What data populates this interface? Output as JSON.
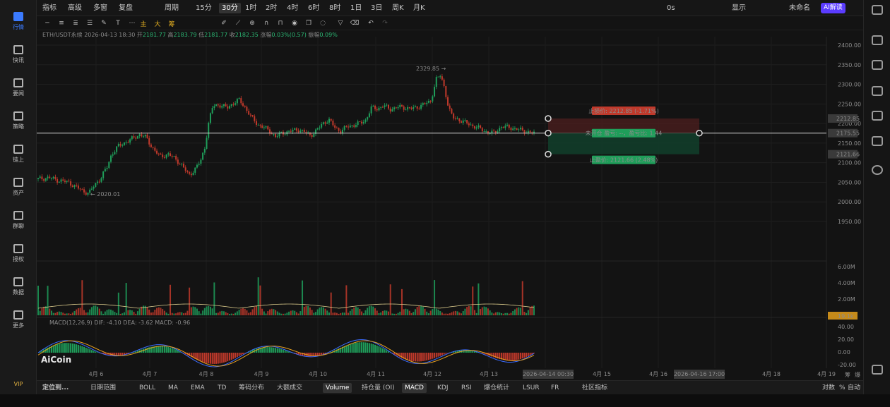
{
  "nav": [
    {
      "label": "行情",
      "active": true
    },
    {
      "label": "快讯",
      "active": false
    },
    {
      "label": "要闻",
      "active": false
    },
    {
      "label": "策略",
      "active": false
    },
    {
      "label": "链上",
      "active": false
    },
    {
      "label": "资产",
      "active": false
    },
    {
      "label": "群聊",
      "active": false
    },
    {
      "label": "授权",
      "active": false
    },
    {
      "label": "数据",
      "active": false
    },
    {
      "label": "更多",
      "active": false
    }
  ],
  "vip": "VIP",
  "toolbar": {
    "indicators": "指标",
    "advanced": "高级",
    "multi": "多窗",
    "replay": "复盘",
    "period": "周期",
    "intervals": [
      "15分",
      "30分",
      "1时",
      "2时",
      "4时",
      "6时",
      "8时",
      "1日",
      "3日",
      "周K",
      "月K"
    ],
    "selected_interval": "30分",
    "countdown": "0s",
    "display": "显示",
    "unnamed": "未命名",
    "ai": "AI解读"
  },
  "draw_tools": [
    "主",
    "大",
    "筹"
  ],
  "ohlc": {
    "symbol": "ETH/USDT永续",
    "time": "2026-04-13 18:30",
    "open_label": "开",
    "open": "2181.77",
    "high_label": "高",
    "high": "2183.79",
    "low_label": "低",
    "low": "2181.77",
    "close_label": "收",
    "close": "2182.35",
    "change_label": "涨幅",
    "change": "0.03%(0.57)",
    "amp_label": "振幅",
    "amp": "0.09%"
  },
  "chart_data": {
    "type": "line",
    "main": {
      "y_ticks": [
        2400,
        2350,
        2300,
        2250,
        2200,
        2150,
        2100,
        2050,
        2000,
        1950
      ],
      "close_path": [
        [
          0,
          2058
        ],
        [
          5,
          2062
        ],
        [
          10,
          2055
        ],
        [
          15,
          2050
        ],
        [
          18,
          2040
        ],
        [
          22,
          2028
        ],
        [
          25,
          2022
        ],
        [
          28,
          2045
        ],
        [
          31,
          2062
        ],
        [
          34,
          2090
        ],
        [
          36,
          2120
        ],
        [
          39,
          2140
        ],
        [
          42,
          2150
        ],
        [
          46,
          2160
        ],
        [
          50,
          2172
        ],
        [
          53,
          2165
        ],
        [
          56,
          2140
        ],
        [
          60,
          2115
        ],
        [
          64,
          2122
        ],
        [
          68,
          2108
        ],
        [
          71,
          2092
        ],
        [
          74,
          2068
        ],
        [
          77,
          2082
        ],
        [
          80,
          2105
        ],
        [
          82,
          2140
        ],
        [
          84,
          2205
        ],
        [
          86,
          2245
        ],
        [
          89,
          2248
        ],
        [
          93,
          2240
        ],
        [
          96,
          2252
        ],
        [
          99,
          2260
        ],
        [
          102,
          2240
        ],
        [
          105,
          2215
        ],
        [
          108,
          2198
        ],
        [
          111,
          2190
        ],
        [
          114,
          2180
        ],
        [
          117,
          2166
        ],
        [
          120,
          2176
        ],
        [
          124,
          2180
        ],
        [
          128,
          2185
        ],
        [
          131,
          2178
        ],
        [
          134,
          2170
        ],
        [
          137,
          2182
        ],
        [
          140,
          2200
        ],
        [
          143,
          2210
        ],
        [
          146,
          2190
        ],
        [
          149,
          2180
        ],
        [
          152,
          2192
        ],
        [
          155,
          2196
        ],
        [
          158,
          2200
        ],
        [
          161,
          2208
        ],
        [
          164,
          2240
        ],
        [
          167,
          2238
        ],
        [
          170,
          2246
        ],
        [
          173,
          2236
        ],
        [
          177,
          2242
        ],
        [
          181,
          2240
        ],
        [
          185,
          2238
        ],
        [
          189,
          2248
        ],
        [
          193,
          2255
        ],
        [
          196,
          2315
        ],
        [
          198,
          2322
        ],
        [
          200,
          2290
        ],
        [
          202,
          2240
        ],
        [
          204,
          2215
        ],
        [
          208,
          2208
        ],
        [
          212,
          2198
        ],
        [
          216,
          2190
        ],
        [
          220,
          2180
        ],
        [
          224,
          2175
        ],
        [
          228,
          2192
        ],
        [
          232,
          2190
        ],
        [
          236,
          2185
        ],
        [
          240,
          2180
        ],
        [
          244,
          2175
        ]
      ],
      "high_label": "2329.85",
      "low_label": "2020.01",
      "price_labels": [
        "2212.85",
        "2175.55",
        "2121.66"
      ]
    },
    "volume": {
      "y_ticks": [
        "6.00M",
        "4.00M",
        "2.00M"
      ],
      "current": "19.1k"
    },
    "macd": {
      "title": "MACD(12,26,9)",
      "dif_label": "DIF: -4.10",
      "dea_label": "DEA: -3.62",
      "macd_label": "MACD: -0.96",
      "y_ticks": [
        "40.00",
        "20.00",
        "0.00",
        "-20.00"
      ]
    },
    "x_ticks": [
      "4月 6",
      "4月 7",
      "4月 8",
      "4月 9",
      "4月 10",
      "4月 11",
      "4月 12",
      "4月 13",
      "4月 15",
      "4月 16",
      "4月 18",
      "4月 19"
    ],
    "x_highlights": [
      "2026-04-14 00:30",
      "2026-04-16 17:00"
    ]
  },
  "trade": {
    "stop_loss": "止损价: 2212.85 (-1.71%)",
    "open_status": "未开仓  盈亏: --，盈亏比: 1.44",
    "take_profit": "止盈价: 2121.66 (2.48%)"
  },
  "bottom": {
    "locate": "定位到...",
    "range": "日期范围",
    "indicators": [
      "BOLL",
      "MA",
      "EMA",
      "TD",
      "筹码分布",
      "大额成交"
    ],
    "panes": [
      "Volume",
      "持仓量 (OI)",
      "MACD",
      "KDJ",
      "RSI",
      "爆仓统计",
      "LSUR",
      "FR"
    ],
    "community": "社区指标",
    "log": "对数",
    "percent": "%",
    "auto": "自动"
  },
  "right_labels": [
    "筹",
    "爆"
  ],
  "logo": "AiCoin"
}
